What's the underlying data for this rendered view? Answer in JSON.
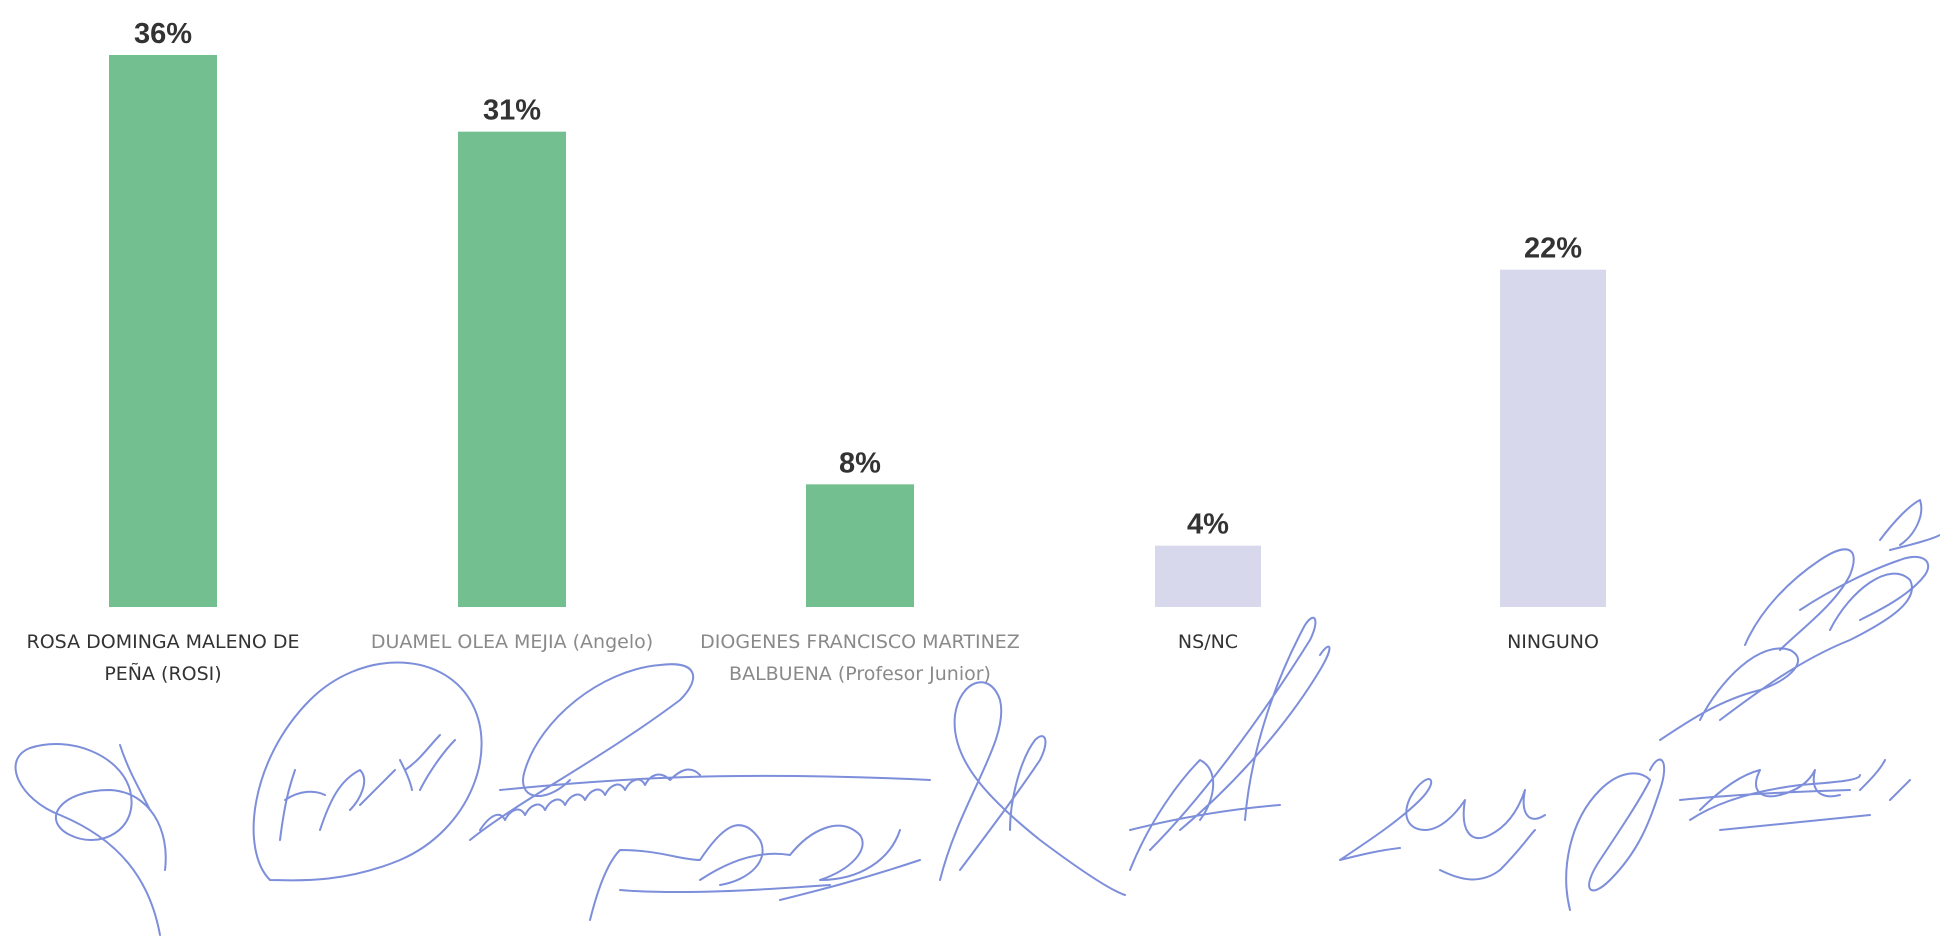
{
  "chart_data": {
    "type": "bar",
    "categories": [
      [
        "ROSA DOMINGA MALENO DE",
        "PEÑA (ROSI)"
      ],
      [
        "DUAMEL OLEA MEJIA (Angelo)"
      ],
      [
        "DIOGENES FRANCISCO MARTINEZ",
        "BALBUENA (Profesor Junior)"
      ],
      [
        "NS/NC"
      ],
      [
        "NINGUNO"
      ]
    ],
    "values": [
      36,
      31,
      8,
      4,
      22
    ],
    "value_labels": [
      "36%",
      "31%",
      "8%",
      "4%",
      "22%"
    ],
    "bar_colors": [
      "#73bf8f",
      "#73bf8f",
      "#73bf8f",
      "#d7d8ec",
      "#d7d8ec"
    ],
    "label_colors": [
      "#333333",
      "#8a8a8a",
      "#8a8a8a",
      "#333333",
      "#333333"
    ],
    "ylim": [
      0,
      36
    ],
    "grid": false,
    "legend": "none"
  },
  "signatures": {
    "count": 9,
    "ink_color": "#6f82d6"
  }
}
